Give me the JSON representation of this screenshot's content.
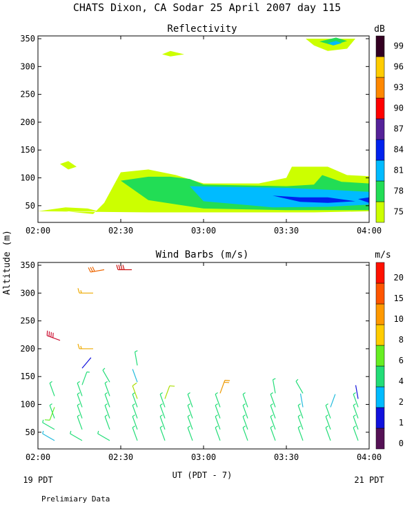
{
  "figure": {
    "title": "CHATS Dixon, CA  Sodar  25 April 2007  day 115",
    "y_axis_label": "Altitude (m)",
    "x_axis_label": "UT  (PDT - 7)",
    "left_time_note": "19 PDT",
    "right_time_note": "21 PDT",
    "footer_note": "Prelimiary Data"
  },
  "chart_data": [
    {
      "type": "heatmap",
      "title": "Reflectivity",
      "colorbar_label": "dB",
      "x_ticks": [
        "02:00",
        "02:30",
        "03:00",
        "03:30",
        "04:00"
      ],
      "y_ticks": [
        50,
        100,
        150,
        200,
        250,
        300,
        350
      ],
      "xlim": [
        "02:00",
        "04:00"
      ],
      "ylim": [
        20,
        355
      ],
      "colorbar": {
        "levels": [
          {
            "label": "75",
            "color": "#ccff00"
          },
          {
            "label": "78",
            "color": "#22dd55"
          },
          {
            "label": "81",
            "color": "#00bbff"
          },
          {
            "label": "84",
            "color": "#0022ee"
          },
          {
            "label": "87",
            "color": "#552299"
          },
          {
            "label": "90",
            "color": "#ff0000"
          },
          {
            "label": "93",
            "color": "#ff8800"
          },
          {
            "label": "96",
            "color": "#ffcc00"
          },
          {
            "label": "99",
            "color": "#330022"
          }
        ]
      },
      "regions": [
        {
          "level": "75",
          "points": [
            [
              "02:00",
              40
            ],
            [
              "02:10",
              40
            ],
            [
              "02:20",
              35
            ],
            [
              "02:24",
              55
            ],
            [
              "02:30",
              110
            ],
            [
              "02:40",
              115
            ],
            [
              "02:50",
              105
            ],
            [
              "03:00",
              90
            ],
            [
              "03:20",
              90
            ],
            [
              "03:30",
              100
            ],
            [
              "03:32",
              120
            ],
            [
              "03:45",
              120
            ],
            [
              "03:52",
              105
            ],
            [
              "04:00",
              103
            ],
            [
              "04:00",
              40
            ],
            [
              "03:40",
              38
            ],
            [
              "02:40",
              38
            ],
            [
              "02:00",
              40
            ]
          ]
        },
        {
          "level": "75",
          "points": [
            [
              "02:00",
              40
            ],
            [
              "02:10",
              47
            ],
            [
              "02:18",
              45
            ],
            [
              "02:22",
              40
            ],
            [
              "02:00",
              40
            ]
          ]
        },
        {
          "level": "78",
          "points": [
            [
              "02:30",
              95
            ],
            [
              "02:40",
              102
            ],
            [
              "02:48",
              102
            ],
            [
              "02:55",
              98
            ],
            [
              "03:00",
              88
            ],
            [
              "03:30",
              85
            ],
            [
              "03:40",
              88
            ],
            [
              "03:43",
              105
            ],
            [
              "03:50",
              93
            ],
            [
              "04:00",
              90
            ],
            [
              "04:00",
              42
            ],
            [
              "03:30",
              42
            ],
            [
              "03:00",
              45
            ],
            [
              "02:40",
              60
            ],
            [
              "02:30",
              95
            ]
          ]
        },
        {
          "level": "81",
          "points": [
            [
              "02:55",
              85
            ],
            [
              "03:30",
              82
            ],
            [
              "03:48",
              78
            ],
            [
              "04:00",
              75
            ],
            [
              "04:00",
              52
            ],
            [
              "03:45",
              48
            ],
            [
              "03:25",
              47
            ],
            [
              "03:00",
              58
            ],
            [
              "02:55",
              85
            ]
          ]
        },
        {
          "level": "84",
          "points": [
            [
              "03:25",
              68
            ],
            [
              "03:35",
              65
            ],
            [
              "03:45",
              65
            ],
            [
              "03:55",
              58
            ],
            [
              "03:45",
              55
            ],
            [
              "03:35",
              57
            ],
            [
              "03:25",
              68
            ]
          ]
        },
        {
          "level": "84",
          "points": [
            [
              "03:56",
              62
            ],
            [
              "04:00",
              65
            ],
            [
              "04:00",
              55
            ],
            [
              "03:56",
              62
            ]
          ]
        },
        {
          "level": "75",
          "points": [
            [
              "02:08",
              125
            ],
            [
              "02:11",
              130
            ],
            [
              "02:14",
              120
            ],
            [
              "02:11",
              115
            ],
            [
              "02:08",
              125
            ]
          ]
        },
        {
          "level": "75",
          "points": [
            [
              "02:45",
              322
            ],
            [
              "02:48",
              328
            ],
            [
              "02:53",
              322
            ],
            [
              "02:48",
              318
            ],
            [
              "02:45",
              322
            ]
          ]
        },
        {
          "level": "75",
          "points": [
            [
              "03:37",
              350
            ],
            [
              "03:55",
              350
            ],
            [
              "03:52",
              332
            ],
            [
              "03:45",
              328
            ],
            [
              "03:40",
              338
            ],
            [
              "03:37",
              350
            ]
          ]
        },
        {
          "level": "78",
          "points": [
            [
              "03:42",
              345
            ],
            [
              "03:48",
              352
            ],
            [
              "03:52",
              346
            ],
            [
              "03:47",
              338
            ],
            [
              "03:42",
              345
            ]
          ]
        },
        {
          "level": "81",
          "points": [
            [
              "03:45",
              342
            ],
            [
              "03:48",
              346
            ],
            [
              "03:50",
              342
            ],
            [
              "03:47",
              338
            ],
            [
              "03:45",
              342
            ]
          ]
        }
      ]
    },
    {
      "type": "scatter",
      "title": "Wind Barbs (m/s)",
      "colorbar_label": "m/s",
      "x_ticks": [
        "02:00",
        "02:30",
        "03:00",
        "03:30",
        "04:00"
      ],
      "y_ticks": [
        50,
        100,
        150,
        200,
        250,
        300,
        350
      ],
      "xlim": [
        "02:00",
        "04:00"
      ],
      "ylim": [
        20,
        355
      ],
      "colorbar": {
        "levels": [
          {
            "label": "0",
            "color": "#551155"
          },
          {
            "label": "1",
            "color": "#1111dd"
          },
          {
            "label": "2",
            "color": "#00bbff"
          },
          {
            "label": "4",
            "color": "#22dd77"
          },
          {
            "label": "6",
            "color": "#66ee22"
          },
          {
            "label": "8",
            "color": "#ffcc00"
          },
          {
            "label": "10",
            "color": "#ff9900"
          },
          {
            "label": "15",
            "color": "#ff5500"
          },
          {
            "label": "20",
            "color": "#ff1100"
          }
        ]
      },
      "barbs": [
        {
          "time": "02:06",
          "alt": 35,
          "dir": 300,
          "speed": 3,
          "color": "#22bbdd"
        },
        {
          "time": "02:06",
          "alt": 55,
          "dir": 300,
          "speed": 4,
          "color": "#22dd77"
        },
        {
          "time": "02:06",
          "alt": 75,
          "dir": 340,
          "speed": 4,
          "color": "#22dd77"
        },
        {
          "time": "02:06",
          "alt": 95,
          "dir": 200,
          "speed": 6,
          "color": "#66ee22"
        },
        {
          "time": "02:06",
          "alt": 115,
          "dir": 340,
          "speed": 4,
          "color": "#22dd77"
        },
        {
          "time": "02:16",
          "alt": 35,
          "dir": 300,
          "speed": 4,
          "color": "#22dd77"
        },
        {
          "time": "02:16",
          "alt": 55,
          "dir": 340,
          "speed": 4,
          "color": "#22dd77"
        },
        {
          "time": "02:16",
          "alt": 75,
          "dir": 340,
          "speed": 4,
          "color": "#22dd77"
        },
        {
          "time": "02:16",
          "alt": 95,
          "dir": 340,
          "speed": 4,
          "color": "#22dd77"
        },
        {
          "time": "02:16",
          "alt": 115,
          "dir": 340,
          "speed": 4,
          "color": "#22dd77"
        },
        {
          "time": "02:16",
          "alt": 135,
          "dir": 20,
          "speed": 4,
          "color": "#22dd77"
        },
        {
          "time": "02:16",
          "alt": 165,
          "dir": 40,
          "speed": 1,
          "color": "#1111dd"
        },
        {
          "time": "02:26",
          "alt": 35,
          "dir": 300,
          "speed": 4,
          "color": "#22dd77"
        },
        {
          "time": "02:26",
          "alt": 55,
          "dir": 340,
          "speed": 4,
          "color": "#22dd77"
        },
        {
          "time": "02:26",
          "alt": 75,
          "dir": 340,
          "speed": 4,
          "color": "#22dd77"
        },
        {
          "time": "02:26",
          "alt": 95,
          "dir": 340,
          "speed": 4,
          "color": "#22dd77"
        },
        {
          "time": "02:26",
          "alt": 115,
          "dir": 340,
          "speed": 4,
          "color": "#22dd77"
        },
        {
          "time": "02:26",
          "alt": 140,
          "dir": 330,
          "speed": 4,
          "color": "#22dd77"
        },
        {
          "time": "02:36",
          "alt": 35,
          "dir": 340,
          "speed": 4,
          "color": "#22dd77"
        },
        {
          "time": "02:36",
          "alt": 55,
          "dir": 340,
          "speed": 4,
          "color": "#22dd77"
        },
        {
          "time": "02:36",
          "alt": 75,
          "dir": 340,
          "speed": 4,
          "color": "#22dd77"
        },
        {
          "time": "02:36",
          "alt": 95,
          "dir": 340,
          "speed": 4,
          "color": "#22dd77"
        },
        {
          "time": "02:36",
          "alt": 110,
          "dir": 340,
          "speed": 6,
          "color": "#aadd00"
        },
        {
          "time": "02:36",
          "alt": 140,
          "dir": 340,
          "speed": 2,
          "color": "#22bbdd"
        },
        {
          "time": "02:36",
          "alt": 170,
          "dir": 350,
          "speed": 4,
          "color": "#22dd77"
        },
        {
          "time": "02:46",
          "alt": 35,
          "dir": 340,
          "speed": 4,
          "color": "#22dd77"
        },
        {
          "time": "02:46",
          "alt": 55,
          "dir": 340,
          "speed": 4,
          "color": "#22dd77"
        },
        {
          "time": "02:46",
          "alt": 75,
          "dir": 340,
          "speed": 4,
          "color": "#22dd77"
        },
        {
          "time": "02:46",
          "alt": 95,
          "dir": 340,
          "speed": 4,
          "color": "#22dd77"
        },
        {
          "time": "02:46",
          "alt": 110,
          "dir": 20,
          "speed": 6,
          "color": "#aadd00"
        },
        {
          "time": "02:56",
          "alt": 35,
          "dir": 340,
          "speed": 4,
          "color": "#22dd77"
        },
        {
          "time": "02:56",
          "alt": 55,
          "dir": 340,
          "speed": 4,
          "color": "#22dd77"
        },
        {
          "time": "02:56",
          "alt": 75,
          "dir": 340,
          "speed": 4,
          "color": "#22dd77"
        },
        {
          "time": "02:56",
          "alt": 95,
          "dir": 340,
          "speed": 4,
          "color": "#22dd77"
        },
        {
          "time": "03:06",
          "alt": 35,
          "dir": 340,
          "speed": 4,
          "color": "#22dd77"
        },
        {
          "time": "03:06",
          "alt": 55,
          "dir": 340,
          "speed": 4,
          "color": "#22dd77"
        },
        {
          "time": "03:06",
          "alt": 75,
          "dir": 340,
          "speed": 4,
          "color": "#22dd77"
        },
        {
          "time": "03:06",
          "alt": 95,
          "dir": 340,
          "speed": 4,
          "color": "#22dd77"
        },
        {
          "time": "03:06",
          "alt": 120,
          "dir": 20,
          "speed": 10,
          "color": "#ee9900"
        },
        {
          "time": "03:16",
          "alt": 35,
          "dir": 340,
          "speed": 4,
          "color": "#22dd77"
        },
        {
          "time": "03:16",
          "alt": 55,
          "dir": 340,
          "speed": 4,
          "color": "#22dd77"
        },
        {
          "time": "03:16",
          "alt": 75,
          "dir": 340,
          "speed": 4,
          "color": "#22dd77"
        },
        {
          "time": "03:16",
          "alt": 95,
          "dir": 340,
          "speed": 4,
          "color": "#22dd77"
        },
        {
          "time": "03:26",
          "alt": 35,
          "dir": 340,
          "speed": 4,
          "color": "#22dd77"
        },
        {
          "time": "03:26",
          "alt": 55,
          "dir": 340,
          "speed": 4,
          "color": "#22dd77"
        },
        {
          "time": "03:26",
          "alt": 75,
          "dir": 340,
          "speed": 4,
          "color": "#22dd77"
        },
        {
          "time": "03:26",
          "alt": 95,
          "dir": 340,
          "speed": 4,
          "color": "#22dd77"
        },
        {
          "time": "03:26",
          "alt": 120,
          "dir": 350,
          "speed": 4,
          "color": "#22dd77"
        },
        {
          "time": "03:36",
          "alt": 35,
          "dir": 340,
          "speed": 4,
          "color": "#22dd77"
        },
        {
          "time": "03:36",
          "alt": 55,
          "dir": 340,
          "speed": 4,
          "color": "#22dd77"
        },
        {
          "time": "03:36",
          "alt": 75,
          "dir": 340,
          "speed": 4,
          "color": "#22dd77"
        },
        {
          "time": "03:36",
          "alt": 95,
          "dir": 350,
          "speed": 2,
          "color": "#22bbdd"
        },
        {
          "time": "03:36",
          "alt": 120,
          "dir": 330,
          "speed": 4,
          "color": "#22dd77"
        },
        {
          "time": "03:46",
          "alt": 35,
          "dir": 340,
          "speed": 4,
          "color": "#22dd77"
        },
        {
          "time": "03:46",
          "alt": 55,
          "dir": 340,
          "speed": 4,
          "color": "#22dd77"
        },
        {
          "time": "03:46",
          "alt": 75,
          "dir": 340,
          "speed": 4,
          "color": "#22dd77"
        },
        {
          "time": "03:46",
          "alt": 95,
          "dir": 20,
          "speed": 2,
          "color": "#22bbdd"
        },
        {
          "time": "03:56",
          "alt": 35,
          "dir": 340,
          "speed": 4,
          "color": "#22dd77"
        },
        {
          "time": "03:56",
          "alt": 55,
          "dir": 340,
          "speed": 4,
          "color": "#22dd77"
        },
        {
          "time": "03:56",
          "alt": 75,
          "dir": 340,
          "speed": 4,
          "color": "#22dd77"
        },
        {
          "time": "03:56",
          "alt": 95,
          "dir": 340,
          "speed": 4,
          "color": "#22dd77"
        },
        {
          "time": "03:56",
          "alt": 110,
          "dir": 350,
          "speed": 1,
          "color": "#1111dd"
        },
        {
          "time": "02:08",
          "alt": 215,
          "dir": 290,
          "speed": 20,
          "color": "#cc1133"
        },
        {
          "time": "02:20",
          "alt": 200,
          "dir": 270,
          "speed": 8,
          "color": "#eeaa00"
        },
        {
          "time": "02:20",
          "alt": 300,
          "dir": 270,
          "speed": 8,
          "color": "#eeaa00"
        },
        {
          "time": "02:24",
          "alt": 342,
          "dir": 260,
          "speed": 15,
          "color": "#ee6600"
        },
        {
          "time": "02:34",
          "alt": 342,
          "dir": 270,
          "speed": 20,
          "color": "#cc1111"
        }
      ]
    }
  ]
}
